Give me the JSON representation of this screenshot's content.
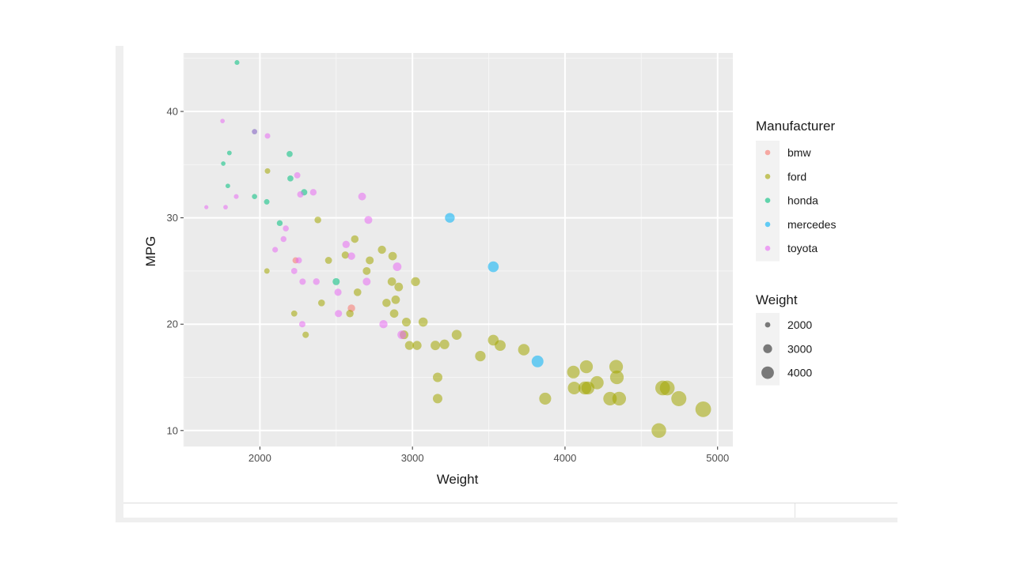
{
  "chart_data": {
    "type": "scatter",
    "title": "",
    "xlabel": "Weight",
    "ylabel": "MPG",
    "xlim": [
      1500,
      5100
    ],
    "ylim": [
      8.5,
      45.5
    ],
    "xticks": [
      2000,
      3000,
      4000,
      5000
    ],
    "yticks": [
      10,
      20,
      30,
      40
    ],
    "grid": true,
    "color_legend": {
      "title": "Manufacturer",
      "entries": [
        {
          "label": "bmw",
          "color": "#F8766D"
        },
        {
          "label": "ford",
          "color": "#A3A500"
        },
        {
          "label": "honda",
          "color": "#00BF7D"
        },
        {
          "label": "mercedes",
          "color": "#00B0F6"
        },
        {
          "label": "toyota",
          "color": "#E76BF3"
        }
      ]
    },
    "size_legend": {
      "title": "Weight",
      "entries": [
        {
          "label": "2000",
          "value": 2000
        },
        {
          "label": "3000",
          "value": 3000
        },
        {
          "label": "4000",
          "value": 4000
        }
      ]
    },
    "series": [
      {
        "name": "bmw",
        "points": [
          [
            2234,
            26
          ],
          [
            2600,
            21.5
          ]
        ]
      },
      {
        "name": "ford",
        "points": [
          [
            2046,
            25
          ],
          [
            2050,
            34.4
          ],
          [
            2225,
            21
          ],
          [
            2300,
            19
          ],
          [
            2380,
            29.8
          ],
          [
            2404,
            22
          ],
          [
            2450,
            26
          ],
          [
            2560,
            26.5
          ],
          [
            2590,
            21
          ],
          [
            2622,
            28
          ],
          [
            2640,
            23
          ],
          [
            2700,
            25
          ],
          [
            2720,
            26
          ],
          [
            2800,
            27
          ],
          [
            2830,
            22
          ],
          [
            2865,
            24
          ],
          [
            2870,
            26.4
          ],
          [
            2880,
            21
          ],
          [
            2890,
            22.3
          ],
          [
            2910,
            23.5
          ],
          [
            2945,
            19
          ],
          [
            2960,
            20.2
          ],
          [
            2980,
            18
          ],
          [
            3020,
            24
          ],
          [
            3030,
            18
          ],
          [
            3070,
            20.2
          ],
          [
            3150,
            18
          ],
          [
            3165,
            15
          ],
          [
            3165,
            13
          ],
          [
            3210,
            18.1
          ],
          [
            3290,
            19
          ],
          [
            3445,
            17
          ],
          [
            3530,
            18.5
          ],
          [
            3575,
            18
          ],
          [
            3730,
            17.6
          ],
          [
            3870,
            13
          ],
          [
            4055,
            15.5
          ],
          [
            4060,
            14
          ],
          [
            4130,
            14
          ],
          [
            4140,
            16
          ],
          [
            4150,
            14
          ],
          [
            4210,
            14.5
          ],
          [
            4295,
            13
          ],
          [
            4335,
            16
          ],
          [
            4340,
            15
          ],
          [
            4355,
            13
          ],
          [
            4615,
            10
          ],
          [
            4640,
            14
          ],
          [
            4670,
            14
          ],
          [
            4746,
            13
          ],
          [
            4906,
            12
          ]
        ]
      },
      {
        "name": "honda",
        "points": [
          [
            1760,
            35.1
          ],
          [
            1800,
            36.1
          ],
          [
            1790,
            33
          ],
          [
            1850,
            44.6
          ],
          [
            1965,
            38.1
          ],
          [
            1965,
            32
          ],
          [
            2045,
            31.5
          ],
          [
            2130,
            29.5
          ],
          [
            2195,
            36
          ],
          [
            2200,
            33.7
          ],
          [
            2290,
            32.4
          ],
          [
            2500,
            24
          ]
        ]
      },
      {
        "name": "mercedes",
        "points": [
          [
            3245,
            30
          ],
          [
            3530,
            25.4
          ],
          [
            3820,
            16.5
          ]
        ]
      },
      {
        "name": "toyota",
        "points": [
          [
            1649,
            31
          ],
          [
            1755,
            39.1
          ],
          [
            1775,
            31
          ],
          [
            1845,
            32
          ],
          [
            1965,
            38.1
          ],
          [
            2050,
            37.7
          ],
          [
            2100,
            27
          ],
          [
            2155,
            28
          ],
          [
            2170,
            29
          ],
          [
            2225,
            25
          ],
          [
            2245,
            34
          ],
          [
            2255,
            26
          ],
          [
            2265,
            32.2
          ],
          [
            2280,
            24
          ],
          [
            2278,
            20
          ],
          [
            2350,
            32.4
          ],
          [
            2370,
            24
          ],
          [
            2512,
            23
          ],
          [
            2515,
            21
          ],
          [
            2565,
            27.5
          ],
          [
            2600,
            26.4
          ],
          [
            2670,
            32
          ],
          [
            2700,
            24
          ],
          [
            2711,
            29.8
          ],
          [
            2810,
            20
          ],
          [
            2900,
            25.4
          ],
          [
            2930,
            19
          ]
        ]
      }
    ]
  }
}
